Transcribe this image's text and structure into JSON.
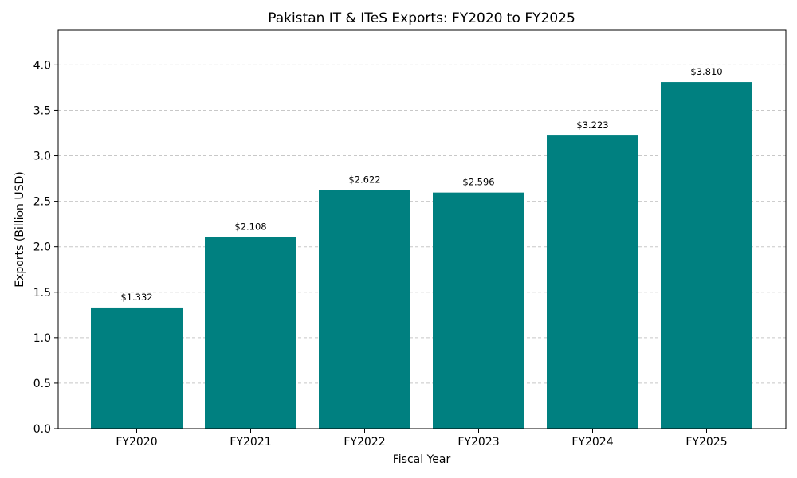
{
  "chart_data": {
    "type": "bar",
    "title": "Pakistan IT & ITeS Exports: FY2020 to FY2025",
    "xlabel": "Fiscal Year",
    "ylabel": "Exports (Billion USD)",
    "categories": [
      "FY2020",
      "FY2021",
      "FY2022",
      "FY2023",
      "FY2024",
      "FY2025"
    ],
    "values": [
      1.332,
      2.108,
      2.622,
      2.596,
      3.223,
      3.81
    ],
    "data_labels": [
      "$1.332",
      "$2.108",
      "$2.622",
      "$2.596",
      "$3.223",
      "$3.810"
    ],
    "ylim": [
      0,
      4.38
    ],
    "yticks": [
      0.0,
      0.5,
      1.0,
      1.5,
      2.0,
      2.5,
      3.0,
      3.5,
      4.0
    ],
    "ytick_labels": [
      "0.0",
      "0.5",
      "1.0",
      "1.5",
      "2.0",
      "2.5",
      "3.0",
      "3.5",
      "4.0"
    ],
    "grid": "y-dashed",
    "bar_color": "#008080"
  }
}
